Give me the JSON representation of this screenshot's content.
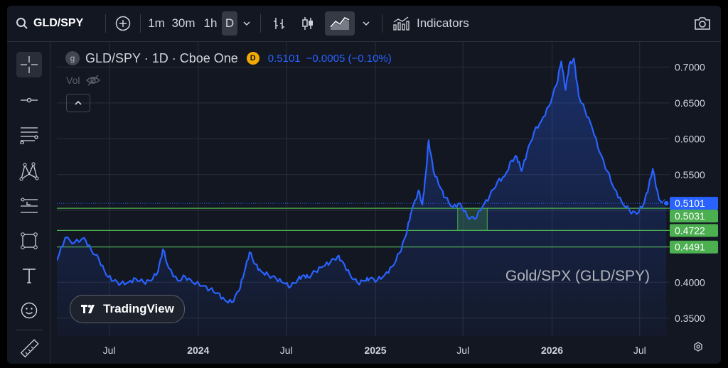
{
  "toolbar": {
    "symbol": "GLD/SPY",
    "intervals": [
      "1m",
      "30m",
      "1h",
      "D"
    ],
    "active_interval": "D",
    "indicators_label": "Indicators"
  },
  "legend": {
    "badge_letter": "g",
    "title": "GLD/SPY · 1D · Cboe One",
    "source_badge": "D",
    "value": "0.5101",
    "change": "−0.0005 (−0.10%)",
    "vol_label": "Vol"
  },
  "watermark": {
    "brand": "TradingView"
  },
  "colors": {
    "line": "#2962ff",
    "level": "#4caf50",
    "background": "#131722",
    "grid": "#2a2e39"
  },
  "chart_data": {
    "type": "line",
    "title": "Gold/SPX (GLD/SPY)",
    "series": [
      {
        "x": [
          "2023-03-15",
          "2023-04-01",
          "2023-04-20",
          "2023-05-10",
          "2023-05-25",
          "2023-06-10",
          "2023-06-25",
          "2023-07-10",
          "2023-07-25",
          "2023-08-10",
          "2023-08-25",
          "2023-09-10",
          "2023-09-25",
          "2023-10-10",
          "2023-10-20",
          "2023-11-01",
          "2023-11-20",
          "2023-12-05",
          "2023-12-20",
          "2024-01-10",
          "2024-01-25",
          "2024-02-10",
          "2024-02-25",
          "2024-03-10",
          "2024-03-25",
          "2024-04-05",
          "2024-04-16",
          "2024-04-28",
          "2024-05-10",
          "2024-05-25",
          "2024-06-10",
          "2024-06-25",
          "2024-07-10",
          "2024-07-25",
          "2024-08-05",
          "2024-08-15",
          "2024-08-30",
          "2024-09-15",
          "2024-09-30",
          "2024-10-15",
          "2024-10-25",
          "2024-11-10",
          "2024-11-25",
          "2024-12-10",
          "2024-12-20",
          "2025-01-05",
          "2025-01-20",
          "2025-02-05",
          "2025-02-20",
          "2025-03-05",
          "2025-03-15",
          "2025-03-31",
          "2025-04-08",
          "2025-04-15",
          "2025-04-21",
          "2025-05-01",
          "2025-05-15",
          "2025-05-25",
          "2025-06-10",
          "2025-06-25",
          "2025-07-10",
          "2025-07-25",
          "2025-08-10",
          "2025-08-25",
          "2025-09-10",
          "2025-09-25",
          "2025-10-10",
          "2025-10-20",
          "2025-10-30",
          "2025-11-10",
          "2025-11-25",
          "2025-12-10",
          "2025-12-25",
          "2026-01-10",
          "2026-01-20",
          "2026-01-29",
          "2026-02-05",
          "2026-02-15",
          "2026-02-25",
          "2026-03-10",
          "2026-03-25",
          "2026-04-10",
          "2026-04-25",
          "2026-05-10",
          "2026-05-25",
          "2026-06-10",
          "2026-06-25",
          "2026-07-10",
          "2026-07-20",
          "2026-07-28",
          "2026-08-10",
          "2026-08-25"
        ],
        "values": [
          0.43,
          0.462,
          0.455,
          0.462,
          0.445,
          0.432,
          0.41,
          0.402,
          0.398,
          0.4,
          0.405,
          0.4,
          0.402,
          0.415,
          0.446,
          0.42,
          0.402,
          0.408,
          0.4,
          0.395,
          0.39,
          0.385,
          0.375,
          0.372,
          0.388,
          0.413,
          0.442,
          0.425,
          0.415,
          0.41,
          0.405,
          0.399,
          0.394,
          0.404,
          0.41,
          0.407,
          0.415,
          0.422,
          0.428,
          0.436,
          0.429,
          0.41,
          0.399,
          0.402,
          0.405,
          0.403,
          0.41,
          0.422,
          0.441,
          0.465,
          0.495,
          0.528,
          0.508,
          0.55,
          0.598,
          0.555,
          0.532,
          0.518,
          0.505,
          0.51,
          0.492,
          0.488,
          0.505,
          0.52,
          0.54,
          0.548,
          0.57,
          0.575,
          0.555,
          0.58,
          0.61,
          0.625,
          0.645,
          0.675,
          0.708,
          0.668,
          0.702,
          0.712,
          0.66,
          0.64,
          0.615,
          0.58,
          0.555,
          0.53,
          0.512,
          0.5,
          0.495,
          0.51,
          0.535,
          0.558,
          0.515,
          0.5101
        ]
      }
    ],
    "ylim": [
      0.325,
      0.735
    ],
    "y_ticks": [
      "0.7000",
      "0.6500",
      "0.6000",
      "0.5500",
      "0.5000",
      "0.4500",
      "0.4000",
      "0.3500"
    ],
    "x_ticks": [
      "Jul",
      "2024",
      "Jul",
      "2025",
      "Jul",
      "2026",
      "Jul"
    ],
    "x_tick_dates": [
      "2023-07-01",
      "2024-01-01",
      "2024-07-01",
      "2025-01-01",
      "2025-07-01",
      "2026-01-01",
      "2026-07-01"
    ],
    "x_range": [
      "2023-03-15",
      "2026-09-01"
    ],
    "last_value": 0.5101,
    "levels": [
      {
        "value": 0.5031,
        "label": "0.5031"
      },
      {
        "value": 0.4722,
        "label": "0.4722"
      },
      {
        "value": 0.4491,
        "label": "0.4491"
      }
    ],
    "box": {
      "x_start": "2025-06-20",
      "x_end": "2025-08-20",
      "y_low": 0.4722,
      "y_high": 0.5031
    },
    "grid": true
  }
}
